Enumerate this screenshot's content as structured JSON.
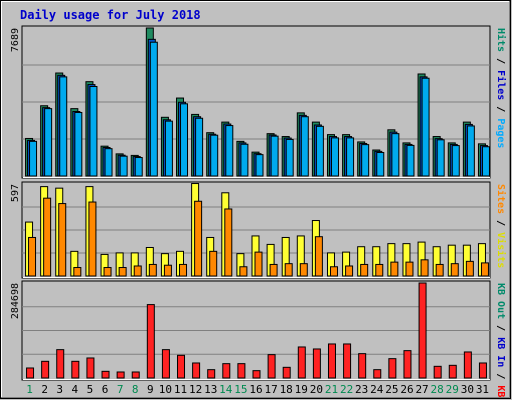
{
  "chart_data": {
    "type": "bar",
    "title": "Daily usage for July 2018",
    "x": [
      "1",
      "2",
      "3",
      "4",
      "5",
      "6",
      "7",
      "8",
      "9",
      "10",
      "11",
      "12",
      "13",
      "14",
      "15",
      "16",
      "17",
      "18",
      "19",
      "20",
      "21",
      "22",
      "23",
      "24",
      "25",
      "26",
      "27",
      "28",
      "29",
      "30",
      "31"
    ],
    "weekend_days": [
      "1",
      "7",
      "8",
      "14",
      "15",
      "21",
      "22",
      "28",
      "29"
    ],
    "panels": [
      {
        "id": "top",
        "max_label": "7689",
        "ylim": [
          0,
          7689
        ],
        "right_label": [
          {
            "text": "Pages",
            "color": "#00aaff"
          },
          {
            "text": " / ",
            "color": "#000000"
          },
          {
            "text": "Files",
            "color": "#0000cc"
          },
          {
            "text": " / ",
            "color": "#000000"
          },
          {
            "text": "Hits",
            "color": "#008a6a"
          }
        ],
        "series": [
          {
            "name": "Hits",
            "color": "#1f8a60",
            "values": [
              1950,
              3650,
              5350,
              3500,
              4900,
              1550,
              1150,
              1070,
              7689,
              3050,
              4050,
              3200,
              2250,
              2800,
              1800,
              1240,
              2200,
              2050,
              3280,
              2800,
              2150,
              2150,
              1770,
              1350,
              2400,
              1720,
              5300,
              2050,
              1720,
              2800,
              1670
            ]
          },
          {
            "name": "Files",
            "color": "#0055cc",
            "values": [
              1850,
              3550,
              5230,
              3350,
              4750,
              1480,
              1080,
              1010,
              7100,
              2920,
              3830,
              3080,
              2170,
              2700,
              1720,
              1160,
              2130,
              1970,
              3150,
              2650,
              2050,
              2050,
              1690,
              1280,
              2280,
              1640,
              5150,
              1940,
              1640,
              2680,
              1580
            ]
          },
          {
            "name": "Pages",
            "color": "#00aaee",
            "values": [
              1800,
              3500,
              5150,
              3300,
              4650,
              1420,
              1030,
              960,
              6950,
              2850,
              3750,
              3000,
              2120,
              2620,
              1650,
              1110,
              2070,
              1900,
              3080,
              2580,
              1980,
              1980,
              1630,
              1220,
              2200,
              1590,
              5080,
              1880,
              1580,
              2600,
              1520
            ]
          }
        ]
      },
      {
        "id": "middle",
        "max_label": "597",
        "ylim": [
          0,
          597
        ],
        "right_label": [
          {
            "text": "Visits",
            "color": "#dddd00"
          },
          {
            "text": " / ",
            "color": "#000000"
          },
          {
            "text": "Sites",
            "color": "#ff8800"
          }
        ],
        "series": [
          {
            "name": "Visits",
            "color": "#ffff33",
            "values": [
              350,
              580,
              570,
              160,
              580,
              140,
              150,
              150,
              185,
              145,
              160,
              600,
              250,
              540,
              145,
              260,
              205,
              250,
              260,
              360,
              150,
              155,
              190,
              190,
              210,
              210,
              220,
              190,
              200,
              200,
              210
            ]
          },
          {
            "name": "Sites",
            "color": "#ff8800",
            "values": [
              250,
              505,
              470,
              55,
              480,
              55,
              55,
              65,
              75,
              70,
              75,
              485,
              160,
              435,
              60,
              155,
              75,
              80,
              80,
              255,
              60,
              65,
              75,
              75,
              90,
              90,
              105,
              75,
              80,
              95,
              85
            ]
          }
        ]
      },
      {
        "id": "bottom",
        "max_label": "284698",
        "ylim": [
          0,
          284698
        ],
        "right_label": [
          {
            "text": "KB F",
            "color": "#ff0000"
          },
          {
            "text": " / ",
            "color": "#000000"
          },
          {
            "text": "KB In",
            "color": "#0000cc"
          },
          {
            "text": " / ",
            "color": "#000000"
          },
          {
            "text": "KB Out",
            "color": "#008a6a"
          }
        ],
        "series": [
          {
            "name": "KB F",
            "color": "#ff2222",
            "values": [
              30000,
              50000,
              85000,
              50000,
              60000,
              20000,
              18000,
              18000,
              220000,
              85000,
              68000,
              45000,
              25000,
              43000,
              43000,
              22000,
              70000,
              32000,
              93000,
              87000,
              102000,
              102000,
              73000,
              25000,
              58000,
              82000,
              284698,
              35000,
              38000,
              78000,
              45000
            ]
          }
        ]
      }
    ]
  }
}
